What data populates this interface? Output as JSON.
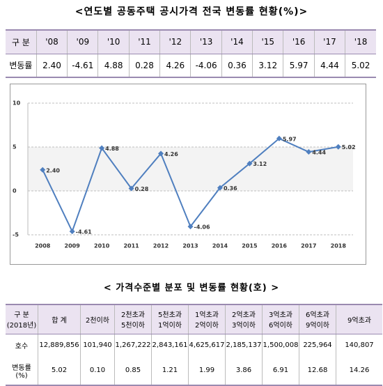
{
  "title1": "<연도별 공동주택 공시가격 전국 변동률 현황(%)>",
  "table1": {
    "header": [
      "구 분",
      "'08",
      "'09",
      "'10",
      "'11",
      "'12",
      "'13",
      "'14",
      "'15",
      "'16",
      "'17",
      "'18"
    ],
    "rows": [
      [
        "변동률",
        "2.40",
        "-4.61",
        "4.88",
        "0.28",
        "4.26",
        "-4.06",
        "0.36",
        "3.12",
        "5.97",
        "4.44",
        "5.02"
      ]
    ]
  },
  "chart_data": {
    "type": "line",
    "categories": [
      "2008",
      "2009",
      "2010",
      "2011",
      "2012",
      "2013",
      "2014",
      "2015",
      "2016",
      "2017",
      "2018"
    ],
    "values": [
      2.4,
      -4.61,
      4.88,
      0.28,
      4.26,
      -4.06,
      0.36,
      3.12,
      5.97,
      4.44,
      5.02
    ],
    "value_labels": [
      "2.40",
      "-4.61",
      "4.88",
      "0.28",
      "4.26",
      "-4.06",
      "0.36",
      "3.12",
      "5.97",
      "4.44",
      "5.02"
    ],
    "color": "#4f7fbf",
    "ylim": [
      -5,
      10
    ],
    "yticks": [
      -5,
      0,
      5,
      10
    ],
    "grid": true
  },
  "title2": "< 가격수준별 분포 및 변동률 현황(호) >",
  "table2": {
    "header": [
      "구 분\n(2018년)",
      "합 계",
      "2천이하",
      "2천초과\n5천이하",
      "5천초과\n1억이하",
      "1억초과\n2억이하",
      "2억초과\n3억이하",
      "3억초과\n6억이하",
      "6억초과\n9억이하",
      "9억초과"
    ],
    "rows": [
      [
        "호수",
        "12,889,856",
        "101,940",
        "1,267,222",
        "2,843,161",
        "4,625,617",
        "2,185,137",
        "1,500,008",
        "225,964",
        "140,807"
      ],
      [
        "변동률\n(%)",
        "5.02",
        "0.10",
        "0.85",
        "1.21",
        "1.99",
        "3.86",
        "6.91",
        "12.68",
        "14.26"
      ]
    ]
  }
}
